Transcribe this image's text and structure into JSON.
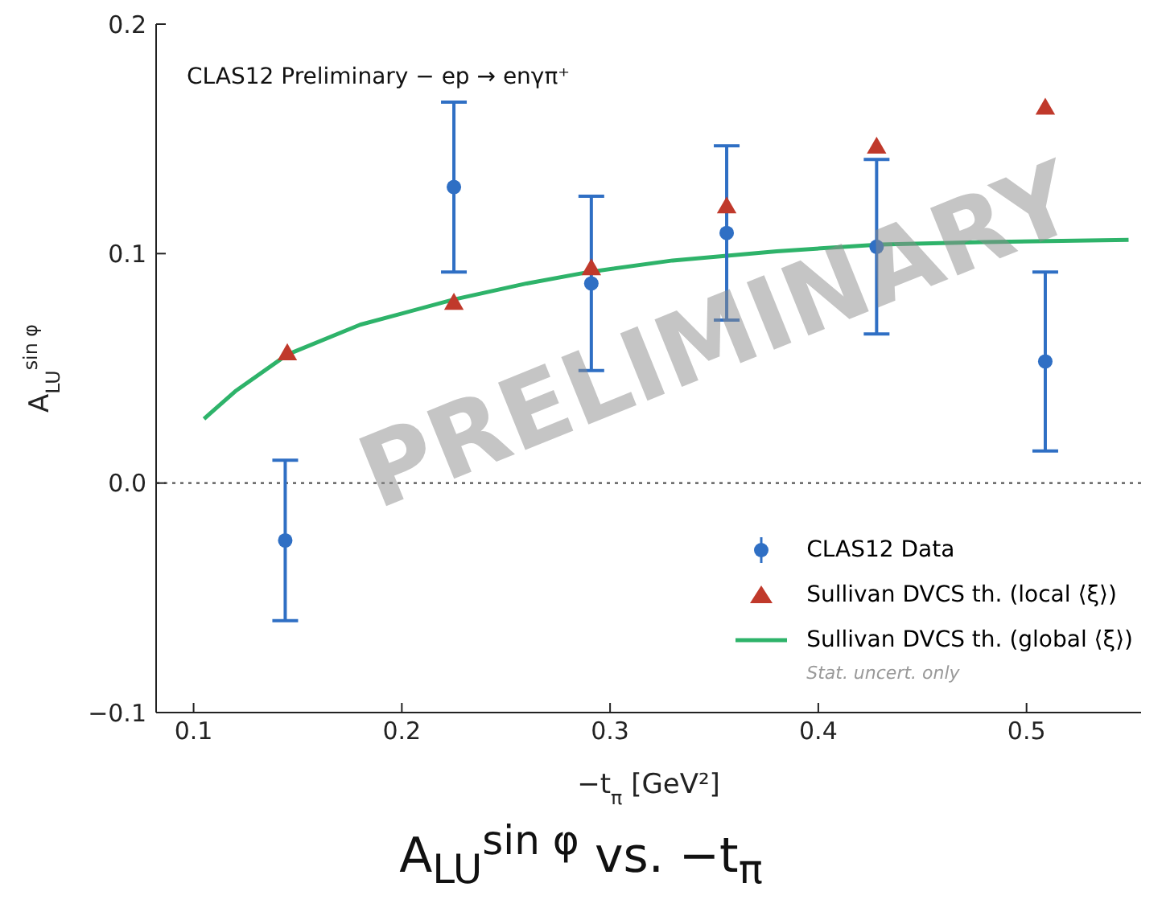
{
  "chart_data": {
    "type": "scatter",
    "title": "A$_{LU}$$^{sin φ}$ vs. −t$_{π}$",
    "xlabel": "−t$_{π}$ [GeV²]",
    "ylabel": "A$_{LU}$$^{sin φ}$",
    "annotations": [
      "CLAS12 Preliminary − ep → enγπ⁺",
      "Stat. uncert. only",
      "PRELIMINARY"
    ],
    "series": [
      {
        "name": "CLAS12 Data",
        "marker": "circle",
        "color": "#2f6fc4",
        "x": [
          0.144,
          0.225,
          0.291,
          0.356,
          0.428,
          0.509
        ],
        "values": [
          -0.025,
          0.129,
          0.087,
          0.109,
          0.103,
          0.053
        ],
        "errors": [
          0.035,
          0.037,
          0.038,
          0.038,
          0.038,
          0.039
        ]
      },
      {
        "name": "Sullivan DVCS th. (local ⟨ξ⟩)",
        "marker": "triangle",
        "color": "#c0392b",
        "x": [
          0.145,
          0.225,
          0.291,
          0.356,
          0.428,
          0.509
        ],
        "values": [
          0.056,
          0.078,
          0.093,
          0.12,
          0.146,
          0.163
        ]
      },
      {
        "name": "Sullivan DVCS th. (global ⟨ξ⟩)",
        "type": "line",
        "marker": "none",
        "line_style": "solid",
        "color": "#2eb36a",
        "x": [
          0.105,
          0.12,
          0.145,
          0.18,
          0.225,
          0.26,
          0.29,
          0.33,
          0.38,
          0.43,
          0.48,
          0.549
        ],
        "values": [
          0.028,
          0.04,
          0.056,
          0.069,
          0.08,
          0.087,
          0.092,
          0.097,
          0.101,
          0.104,
          0.105,
          0.106
        ]
      }
    ],
    "xlim": [
      0.082,
      0.555
    ],
    "xticks": [
      0.1,
      0.2,
      0.3,
      0.4,
      0.5
    ],
    "ylim": [
      -0.1,
      0.2
    ],
    "yticks": [
      {
        "value": -0.1,
        "label": "−0.1"
      },
      {
        "value": 0,
        "label": "0.0"
      },
      0.1,
      0.2
    ],
    "ref_lines": [
      {
        "axis": "y",
        "value": 0,
        "line_style": "dotted",
        "color": "#555555"
      }
    ],
    "grid": false,
    "legend": "bottom right"
  }
}
